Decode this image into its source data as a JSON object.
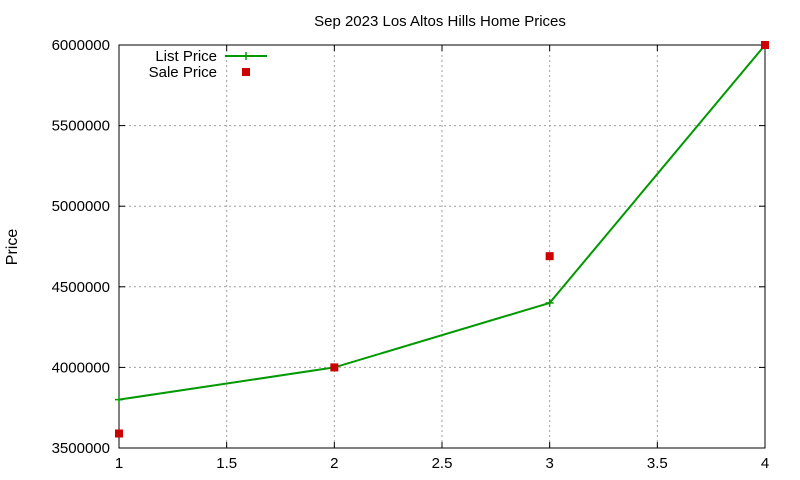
{
  "chart_data": {
    "type": "line",
    "title": "Sep 2023 Los Altos Hills Home Prices",
    "xlabel": "",
    "ylabel": "Price",
    "xlim": [
      1,
      4
    ],
    "ylim": [
      3500000,
      6000000
    ],
    "x_ticks": [
      "1",
      "1.5",
      "2",
      "2.5",
      "3",
      "3.5",
      "4"
    ],
    "y_ticks": [
      "3500000",
      "4000000",
      "4500000",
      "5000000",
      "5500000",
      "6000000"
    ],
    "grid": true,
    "legend_position": "top-left",
    "series": [
      {
        "name": "List Price",
        "style": "line-with-plus-markers",
        "color": "#009900",
        "x": [
          1,
          2,
          3,
          4
        ],
        "y": [
          3800000,
          4000000,
          4400000,
          6000000
        ]
      },
      {
        "name": "Sale Price",
        "style": "square-markers",
        "color": "#cc0000",
        "x": [
          1,
          2,
          3,
          4
        ],
        "y": [
          3590000,
          4000000,
          4690000,
          6000000
        ]
      }
    ]
  }
}
